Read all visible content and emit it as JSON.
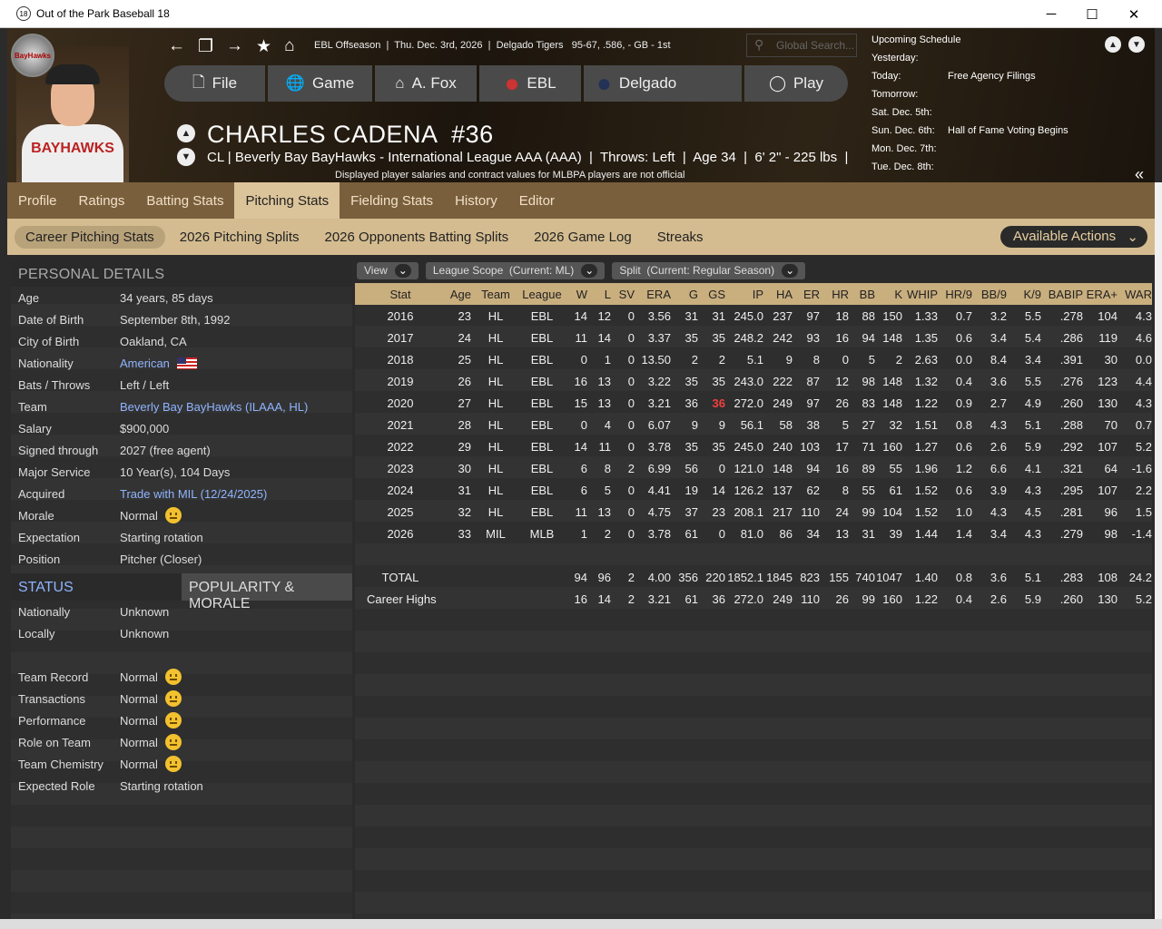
{
  "window": {
    "title": "Out of the Park Baseball 18",
    "logo": "18",
    "minimize": "─",
    "maximize": "☐",
    "close": "✕"
  },
  "header": {
    "info": "EBL Offseason  |  Thu. Dec. 3rd, 2026  |  Delgado Tigers   95-67, .586, - GB - 1st",
    "search_placeholder": "Global Search...",
    "nav": [
      {
        "label": "File",
        "icon": "file-icon",
        "glyph": "🗋"
      },
      {
        "label": "Game",
        "icon": "globe-icon",
        "glyph": "🌐"
      },
      {
        "label": "A. Fox",
        "icon": "home-outline-icon",
        "glyph": "⌂"
      },
      {
        "label": "EBL",
        "icon": "ebl-logo-icon",
        "glyph": "●"
      },
      {
        "label": "Delgado",
        "icon": "delgado-logo-icon",
        "glyph": "●"
      },
      {
        "label": "Play",
        "icon": "baseball-icon",
        "glyph": "◯"
      }
    ],
    "player_name": "CHARLES CADENA  #36",
    "player_sub": "CL | Beverly Bay BayHawks - International League AAA (AAA)  |  Throws: Left  |  Age 34  |  6' 2\" - 225 lbs  |",
    "disclaimer": "Displayed player salaries and contract values for MLBPA players are not official",
    "team_logo_text": "BayHawks",
    "jersey_text": "BAYHAWKS"
  },
  "schedule": {
    "title": "Upcoming Schedule",
    "rows": [
      {
        "day": "Yesterday:",
        "event": ""
      },
      {
        "day": "Today:",
        "event": "Free Agency Filings"
      },
      {
        "day": "Tomorrow:",
        "event": ""
      },
      {
        "day": "Sat. Dec. 5th:",
        "event": ""
      },
      {
        "day": "Sun. Dec. 6th:",
        "event": "Hall of Fame Voting Begins"
      },
      {
        "day": "Mon. Dec. 7th:",
        "event": ""
      },
      {
        "day": "Tue. Dec. 8th:",
        "event": ""
      }
    ]
  },
  "tabs": [
    "Profile",
    "Ratings",
    "Batting Stats",
    "Pitching Stats",
    "Fielding Stats",
    "History",
    "Editor"
  ],
  "active_tab": "Pitching Stats",
  "subtabs": [
    "Career Pitching Stats",
    "2026 Pitching Splits",
    "2026 Opponents Batting Splits",
    "2026 Game Log",
    "Streaks"
  ],
  "available_actions": "Available Actions",
  "personal": {
    "title": "PERSONAL DETAILS",
    "rows": [
      {
        "k": "Age",
        "v": "34 years, 85 days"
      },
      {
        "k": "Date of Birth",
        "v": "September 8th, 1992"
      },
      {
        "k": "City of Birth",
        "v": "Oakland, CA"
      },
      {
        "k": "Nationality",
        "v": "American",
        "link": true,
        "flag": true
      },
      {
        "k": "Bats / Throws",
        "v": "Left / Left"
      },
      {
        "k": "Team",
        "v": "Beverly Bay BayHawks (ILAAA, HL)",
        "link": true
      },
      {
        "k": "Salary",
        "v": "$900,000"
      },
      {
        "k": "Signed through",
        "v": "2027 (free agent)"
      },
      {
        "k": "Major Service",
        "v": "10 Year(s), 104 Days"
      },
      {
        "k": "Acquired",
        "v": "Trade with MIL (12/24/2025)",
        "link": true
      },
      {
        "k": "Morale",
        "v": "Normal",
        "smile": true
      },
      {
        "k": "Expectation",
        "v": "Starting rotation"
      },
      {
        "k": "Position",
        "v": "Pitcher (Closer)"
      }
    ]
  },
  "status": {
    "tab1": "STATUS",
    "tab2": "POPULARITY & MORALE",
    "rows": [
      {
        "k": "Nationally",
        "v": "Unknown"
      },
      {
        "k": "Locally",
        "v": "Unknown"
      },
      {
        "k": "",
        "v": ""
      },
      {
        "k": "Team Record",
        "v": "Normal",
        "smile": true
      },
      {
        "k": "Transactions",
        "v": "Normal",
        "smile": true
      },
      {
        "k": "Performance",
        "v": "Normal",
        "smile": true
      },
      {
        "k": "Role on Team",
        "v": "Normal",
        "smile": true
      },
      {
        "k": "Team Chemistry",
        "v": "Normal",
        "smile": true
      },
      {
        "k": "Expected Role",
        "v": "Starting rotation"
      }
    ]
  },
  "filters": [
    {
      "label": "View"
    },
    {
      "label": "League Scope  (Current: ML)"
    },
    {
      "label": "Split  (Current: Regular Season)"
    }
  ],
  "stats": {
    "columns": [
      "Stat",
      "Age",
      "Team",
      "League",
      "W",
      "L",
      "SV",
      "ERA",
      "G",
      "GS",
      "IP",
      "HA",
      "ER",
      "HR",
      "BB",
      "K",
      "WHIP",
      "HR/9",
      "BB/9",
      "K/9",
      "BABIP",
      "ERA+",
      "WAR"
    ],
    "rows": [
      [
        "2016",
        "23",
        "HL",
        "EBL",
        "14",
        "12",
        "0",
        "3.56",
        "31",
        "31",
        "245.0",
        "237",
        "97",
        "18",
        "88",
        "150",
        "1.33",
        "0.7",
        "3.2",
        "5.5",
        ".278",
        "104",
        "4.3"
      ],
      [
        "2017",
        "24",
        "HL",
        "EBL",
        "11",
        "14",
        "0",
        "3.37",
        "35",
        "35",
        "248.2",
        "242",
        "93",
        "16",
        "94",
        "148",
        "1.35",
        "0.6",
        "3.4",
        "5.4",
        ".286",
        "119",
        "4.6"
      ],
      [
        "2018",
        "25",
        "HL",
        "EBL",
        "0",
        "1",
        "0",
        "13.50",
        "2",
        "2",
        "5.1",
        "9",
        "8",
        "0",
        "5",
        "2",
        "2.63",
        "0.0",
        "8.4",
        "3.4",
        ".391",
        "30",
        "0.0"
      ],
      [
        "2019",
        "26",
        "HL",
        "EBL",
        "16",
        "13",
        "0",
        "3.22",
        "35",
        "35",
        "243.0",
        "222",
        "87",
        "12",
        "98",
        "148",
        "1.32",
        "0.4",
        "3.6",
        "5.5",
        ".276",
        "123",
        "4.4"
      ],
      [
        "2020",
        "27",
        "HL",
        "EBL",
        "15",
        "13",
        "0",
        "3.21",
        "36",
        "36",
        "272.0",
        "249",
        "97",
        "26",
        "83",
        "148",
        "1.22",
        "0.9",
        "2.7",
        "4.9",
        ".260",
        "130",
        "4.3"
      ],
      [
        "2021",
        "28",
        "HL",
        "EBL",
        "0",
        "4",
        "0",
        "6.07",
        "9",
        "9",
        "56.1",
        "58",
        "38",
        "5",
        "27",
        "32",
        "1.51",
        "0.8",
        "4.3",
        "5.1",
        ".288",
        "70",
        "0.7"
      ],
      [
        "2022",
        "29",
        "HL",
        "EBL",
        "14",
        "11",
        "0",
        "3.78",
        "35",
        "35",
        "245.0",
        "240",
        "103",
        "17",
        "71",
        "160",
        "1.27",
        "0.6",
        "2.6",
        "5.9",
        ".292",
        "107",
        "5.2"
      ],
      [
        "2023",
        "30",
        "HL",
        "EBL",
        "6",
        "8",
        "2",
        "6.99",
        "56",
        "0",
        "121.0",
        "148",
        "94",
        "16",
        "89",
        "55",
        "1.96",
        "1.2",
        "6.6",
        "4.1",
        ".321",
        "64",
        "-1.6"
      ],
      [
        "2024",
        "31",
        "HL",
        "EBL",
        "6",
        "5",
        "0",
        "4.41",
        "19",
        "14",
        "126.2",
        "137",
        "62",
        "8",
        "55",
        "61",
        "1.52",
        "0.6",
        "3.9",
        "4.3",
        ".295",
        "107",
        "2.2"
      ],
      [
        "2025",
        "32",
        "HL",
        "EBL",
        "11",
        "13",
        "0",
        "4.75",
        "37",
        "23",
        "208.1",
        "217",
        "110",
        "24",
        "99",
        "104",
        "1.52",
        "1.0",
        "4.3",
        "4.5",
        ".281",
        "96",
        "1.5"
      ],
      [
        "2026",
        "33",
        "MIL",
        "MLB",
        "1",
        "2",
        "0",
        "3.78",
        "61",
        "0",
        "81.0",
        "86",
        "34",
        "13",
        "31",
        "39",
        "1.44",
        "1.4",
        "3.4",
        "4.3",
        ".279",
        "98",
        "-1.4"
      ],
      [
        "",
        "",
        "",
        "",
        "",
        "",
        "",
        "",
        "",
        "",
        "",
        "",
        "",
        "",
        "",
        "",
        "",
        "",
        "",
        "",
        "",
        "",
        ""
      ],
      [
        "TOTAL",
        "",
        "",
        "",
        "94",
        "96",
        "2",
        "4.00",
        "356",
        "220",
        "1852.1",
        "1845",
        "823",
        "155",
        "740",
        "1047",
        "1.40",
        "0.8",
        "3.6",
        "5.1",
        ".283",
        "108",
        "24.2"
      ],
      [
        "Career Highs",
        "",
        "",
        "",
        "16",
        "14",
        "2",
        "3.21",
        "61",
        "36",
        "272.0",
        "249",
        "110",
        "26",
        "99",
        "160",
        "1.22",
        "0.4",
        "2.6",
        "5.9",
        ".260",
        "130",
        "5.2"
      ]
    ],
    "highlight_color": "#f04040"
  }
}
